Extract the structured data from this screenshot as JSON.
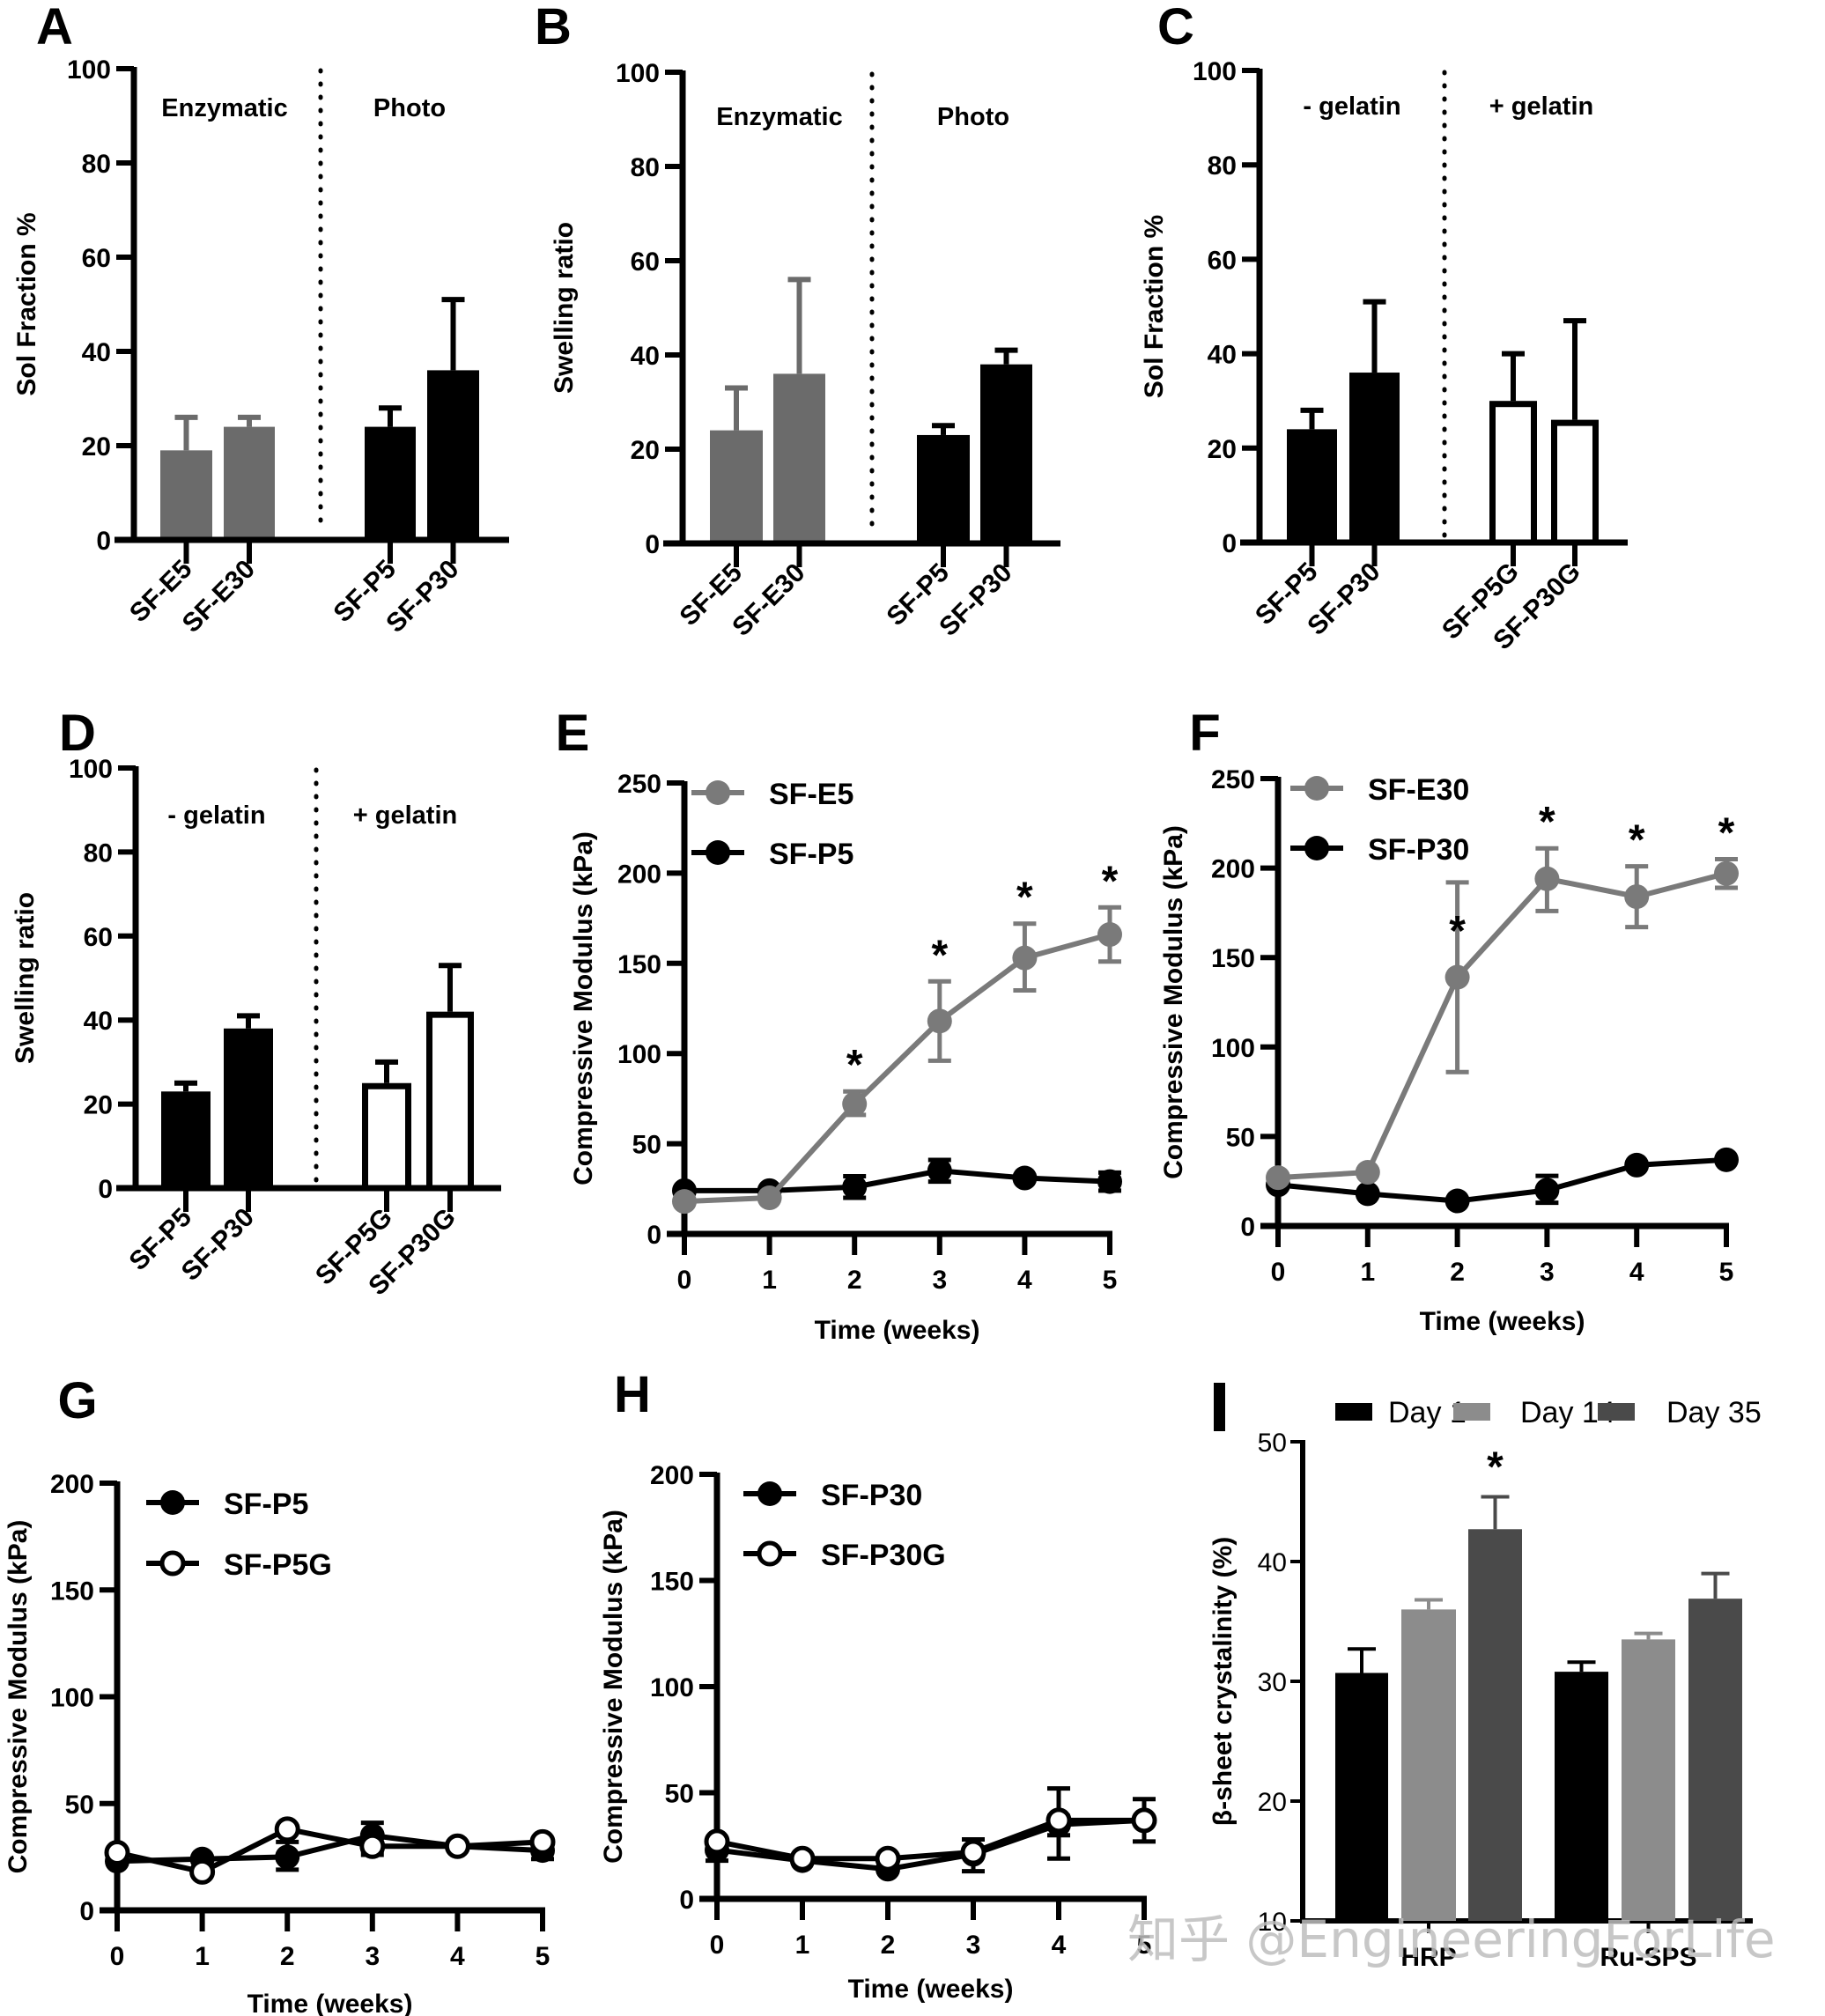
{
  "figure": {
    "watermark": "知乎 @EngineeringForLife",
    "colors": {
      "black": "#000000",
      "gray": "#6b6b6b",
      "line_gray": "#7a7a7a",
      "light_gray": "#8c8c8c",
      "dark_gray": "#4a4a4a",
      "white": "#ffffff"
    }
  },
  "chart_data": [
    {
      "id": "A",
      "panel_label": "A",
      "type": "bar",
      "ylabel": "Sol Fraction %",
      "ylim": [
        0,
        100
      ],
      "yticks": [
        0,
        20,
        40,
        60,
        80,
        100
      ],
      "group_labels": [
        "Enzymatic",
        "Photo"
      ],
      "categories": [
        "SF-E5",
        "SF-E30",
        "SF-P5",
        "SF-P30"
      ],
      "values": [
        19,
        24,
        24,
        36
      ],
      "errors_upper": [
        26,
        26,
        28,
        51
      ],
      "fill": [
        "gray",
        "gray",
        "black",
        "black"
      ],
      "outline_only": [
        false,
        false,
        false,
        false
      ]
    },
    {
      "id": "B",
      "panel_label": "B",
      "type": "bar",
      "ylabel": "Swelling ratio",
      "ylim": [
        0,
        100
      ],
      "yticks": [
        0,
        20,
        40,
        60,
        80,
        100
      ],
      "group_labels": [
        "Enzymatic",
        "Photo"
      ],
      "categories": [
        "SF-E5",
        "SF-E30",
        "SF-P5",
        "SF-P30"
      ],
      "values": [
        24,
        36,
        23,
        38
      ],
      "errors_upper": [
        33,
        56,
        25,
        41
      ],
      "fill": [
        "gray",
        "gray",
        "black",
        "black"
      ],
      "outline_only": [
        false,
        false,
        false,
        false
      ]
    },
    {
      "id": "C",
      "panel_label": "C",
      "type": "bar",
      "ylabel": "Sol Fraction %",
      "ylim": [
        0,
        100
      ],
      "yticks": [
        0,
        20,
        40,
        60,
        80,
        100
      ],
      "group_labels": [
        "- gelatin",
        "+ gelatin"
      ],
      "categories": [
        "SF-P5",
        "SF-P30",
        "SF-P5G",
        "SF-P30G"
      ],
      "values": [
        24,
        36,
        30,
        26
      ],
      "errors_upper": [
        28,
        51,
        40,
        47
      ],
      "fill": [
        "black",
        "black",
        "white",
        "white"
      ],
      "outline_only": [
        false,
        false,
        true,
        true
      ]
    },
    {
      "id": "D",
      "panel_label": "D",
      "type": "bar",
      "ylabel": "Swelling ratio",
      "ylim": [
        0,
        100
      ],
      "yticks": [
        0,
        20,
        40,
        60,
        80,
        100
      ],
      "group_labels": [
        "- gelatin",
        "+ gelatin"
      ],
      "categories": [
        "SF-P5",
        "SF-P30",
        "SF-P5G",
        "SF-P30G"
      ],
      "values": [
        23,
        38,
        25,
        42
      ],
      "errors_upper": [
        25,
        41,
        30,
        53
      ],
      "fill": [
        "black",
        "black",
        "white",
        "white"
      ],
      "outline_only": [
        false,
        false,
        true,
        true
      ]
    },
    {
      "id": "E",
      "panel_label": "E",
      "type": "line",
      "xlabel": "Time (weeks)",
      "ylabel": "Compressive Modulus (kPa)",
      "x": [
        0,
        1,
        2,
        3,
        4,
        5
      ],
      "xticks": [
        0,
        1,
        2,
        3,
        4,
        5
      ],
      "ylim": [
        0,
        250
      ],
      "yticks": [
        0,
        50,
        100,
        150,
        200,
        250
      ],
      "legend_position": "top-left",
      "series": [
        {
          "name": "SF-E5",
          "color": "line_gray",
          "marker": "filled",
          "values": [
            18,
            20,
            72,
            118,
            153,
            166
          ],
          "err_low": [
            18,
            20,
            66,
            96,
            135,
            151
          ],
          "err_high": [
            18,
            20,
            79,
            140,
            172,
            181
          ]
        },
        {
          "name": "SF-P5",
          "color": "black",
          "marker": "filled",
          "values": [
            24,
            24,
            26,
            35,
            31,
            29
          ],
          "err_low": [
            24,
            24,
            20,
            29,
            31,
            24
          ],
          "err_high": [
            24,
            24,
            32,
            41,
            31,
            34
          ]
        }
      ],
      "significance": [
        {
          "x": 2,
          "y": 79,
          "label": "*"
        },
        {
          "x": 3,
          "y": 140,
          "label": "*"
        },
        {
          "x": 4,
          "y": 172,
          "label": "*"
        },
        {
          "x": 5,
          "y": 181,
          "label": "*"
        }
      ]
    },
    {
      "id": "F",
      "panel_label": "F",
      "type": "line",
      "xlabel": "Time (weeks)",
      "ylabel": "Compressive Modulus (kPa)",
      "x": [
        0,
        1,
        2,
        3,
        4,
        5
      ],
      "xticks": [
        0,
        1,
        2,
        3,
        4,
        5
      ],
      "ylim": [
        0,
        250
      ],
      "yticks": [
        0,
        50,
        100,
        150,
        200,
        250
      ],
      "legend_position": "top-left",
      "series": [
        {
          "name": "SF-E30",
          "color": "line_gray",
          "marker": "filled",
          "values": [
            27,
            30,
            139,
            194,
            184,
            197
          ],
          "err_low": [
            27,
            30,
            86,
            176,
            167,
            189
          ],
          "err_high": [
            27,
            30,
            192,
            211,
            201,
            205
          ]
        },
        {
          "name": "SF-P30",
          "color": "black",
          "marker": "filled",
          "values": [
            23,
            18,
            14,
            20,
            34,
            37
          ],
          "err_low": [
            23,
            18,
            14,
            13,
            34,
            37
          ],
          "err_high": [
            23,
            18,
            14,
            28,
            34,
            37
          ]
        }
      ],
      "significance": [
        {
          "x": 2,
          "y": 150,
          "label": "*"
        },
        {
          "x": 3,
          "y": 211,
          "label": "*"
        },
        {
          "x": 4,
          "y": 201,
          "label": "*"
        },
        {
          "x": 5,
          "y": 205,
          "label": "*"
        }
      ]
    },
    {
      "id": "G",
      "panel_label": "G",
      "type": "line",
      "xlabel": "Time (weeks)",
      "ylabel": "Compressive Modulus (kPa)",
      "x": [
        0,
        1,
        2,
        3,
        4,
        5
      ],
      "xticks": [
        0,
        1,
        2,
        3,
        4,
        5
      ],
      "ylim": [
        0,
        200
      ],
      "yticks": [
        0,
        50,
        100,
        150,
        200
      ],
      "legend_position": "top-left",
      "series": [
        {
          "name": "SF-P5",
          "color": "black",
          "marker": "filled",
          "values": [
            23,
            24,
            25,
            35,
            30,
            28
          ],
          "err_low": [
            23,
            24,
            19,
            28,
            30,
            24
          ],
          "err_high": [
            23,
            24,
            32,
            41,
            30,
            33
          ]
        },
        {
          "name": "SF-P5G",
          "color": "black",
          "marker": "open",
          "values": [
            27,
            18,
            38,
            30,
            30,
            32
          ],
          "err_low": [
            27,
            18,
            38,
            26,
            30,
            32
          ],
          "err_high": [
            27,
            18,
            38,
            35,
            30,
            32
          ]
        }
      ],
      "significance": []
    },
    {
      "id": "H",
      "panel_label": "H",
      "type": "line",
      "xlabel": "Time (weeks)",
      "ylabel": "Compressive Modulus (kPa)",
      "x": [
        0,
        1,
        2,
        3,
        4,
        5
      ],
      "xticks": [
        0,
        1,
        2,
        3,
        4,
        5
      ],
      "ylim": [
        0,
        200
      ],
      "yticks": [
        0,
        50,
        100,
        150,
        200
      ],
      "legend_position": "top-left",
      "series": [
        {
          "name": "SF-P30",
          "color": "black",
          "marker": "filled",
          "values": [
            23,
            18,
            14,
            21,
            35,
            37
          ],
          "err_low": [
            18,
            18,
            14,
            13,
            19,
            27
          ],
          "err_high": [
            28,
            18,
            14,
            28,
            52,
            47
          ]
        },
        {
          "name": "SF-P30G",
          "color": "black",
          "marker": "open",
          "values": [
            27,
            19,
            19,
            22,
            37,
            37
          ],
          "err_low": [
            27,
            19,
            19,
            22,
            30,
            37
          ],
          "err_high": [
            27,
            19,
            19,
            22,
            39,
            37
          ]
        }
      ],
      "significance": []
    },
    {
      "id": "I",
      "panel_label": "I",
      "type": "bar",
      "ylabel": "β-sheet crystalinity (%)",
      "ylim": [
        10,
        50
      ],
      "yticks": [
        10,
        20,
        30,
        40,
        50
      ],
      "categories": [
        "HRP",
        "Ru-SPS"
      ],
      "legend_position": "top",
      "series": [
        {
          "name": "Day 1",
          "color": "black",
          "values": [
            30.7,
            30.8
          ],
          "errors_upper": [
            32.7,
            31.6
          ]
        },
        {
          "name": "Day 14",
          "color": "light_gray",
          "values": [
            36.0,
            33.5
          ],
          "errors_upper": [
            36.8,
            34.0
          ]
        },
        {
          "name": "Day 35",
          "color": "dark_gray",
          "values": [
            42.7,
            36.9
          ],
          "errors_upper": [
            45.4,
            39.0
          ]
        }
      ],
      "significance": [
        {
          "category": "HRP",
          "series": "Day 35",
          "label": "*"
        }
      ]
    }
  ]
}
